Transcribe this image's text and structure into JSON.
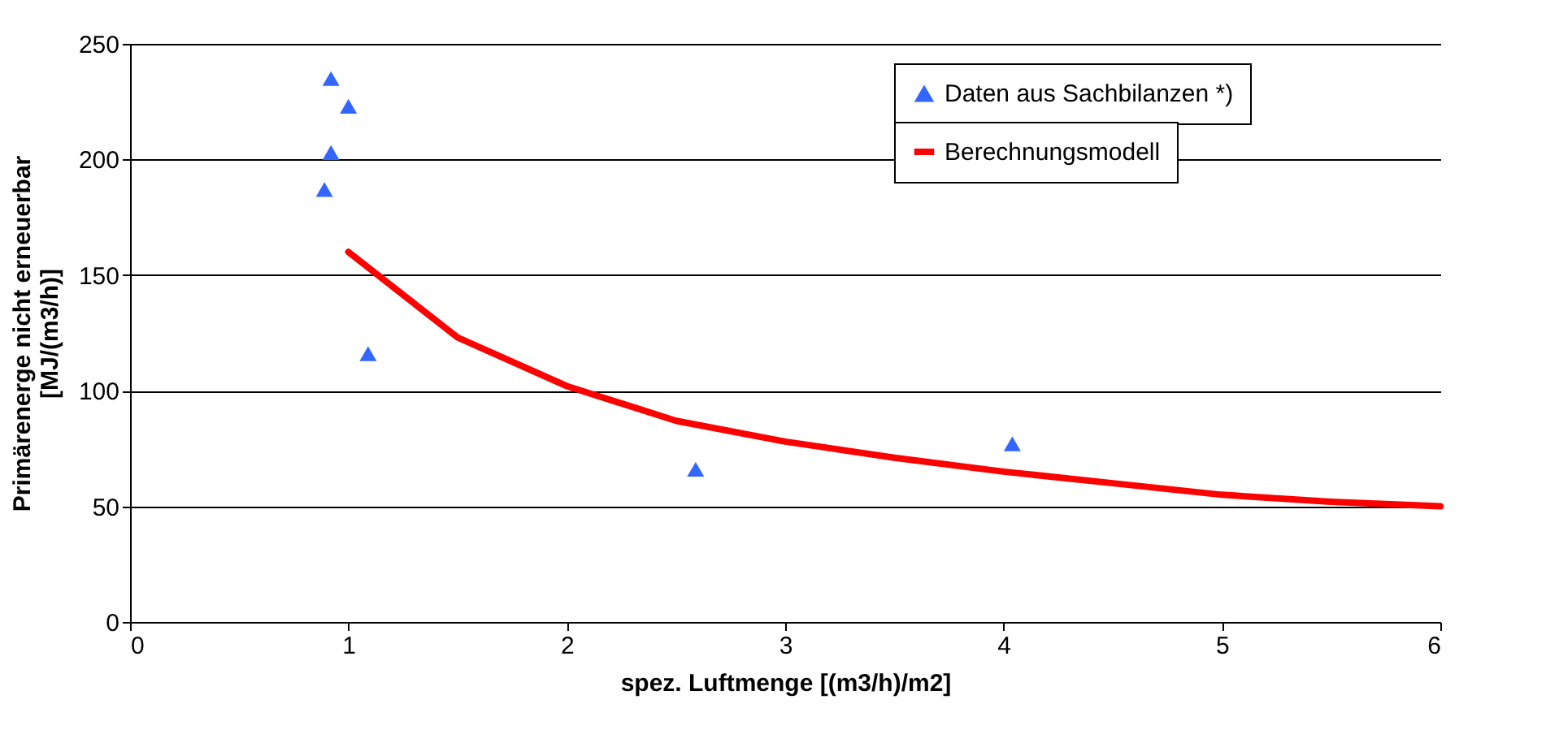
{
  "chart_data": {
    "type": "scatter",
    "xlabel": "spez. Luftmenge [(m3/h)/m2]",
    "ylabel": "Primärenerge nicht erneuerbar\n[MJ/(m3/h)]",
    "xlim": [
      0,
      6
    ],
    "xticks": [
      0,
      1,
      2,
      3,
      4,
      5,
      6
    ],
    "ylim": [
      0,
      250
    ],
    "yticks": [
      0,
      50,
      100,
      150,
      200,
      250
    ],
    "grid": "y",
    "legend": "top right",
    "line_style": "solid",
    "series": [
      {
        "name": "Daten aus Sachbilanzen *)",
        "marker": "triangle",
        "color": "#3366ff",
        "x": [
          0.92,
          1.0,
          0.92,
          0.89,
          1.09,
          2.59,
          4.04
        ],
        "values": [
          235,
          223,
          203,
          187,
          116,
          66,
          77
        ]
      },
      {
        "name": "Berechnungsmodell",
        "type": "line",
        "marker": "none",
        "color": "#ff0000",
        "x": [
          1,
          1.5,
          2,
          2.5,
          3,
          3.5,
          4,
          4.5,
          5,
          5.5,
          6
        ],
        "values": [
          160,
          123,
          102,
          87,
          78,
          71,
          65,
          60,
          55,
          52,
          50
        ]
      }
    ]
  }
}
